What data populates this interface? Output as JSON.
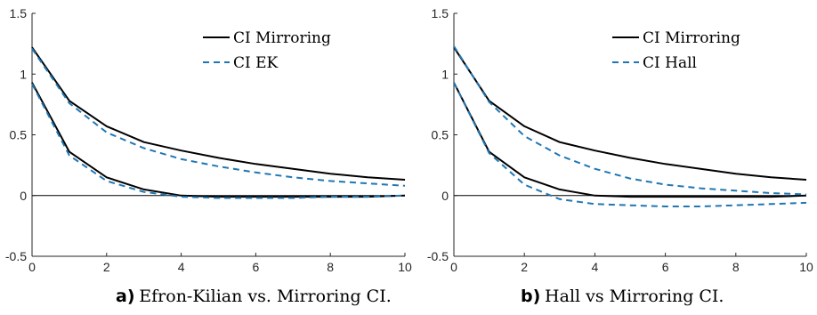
{
  "chart_data": [
    {
      "type": "line",
      "xlim": [
        0,
        10
      ],
      "ylim": [
        -0.5,
        1.5
      ],
      "xticks": [
        "0",
        "2",
        "4",
        "6",
        "8",
        "10"
      ],
      "yticks": [
        "-0.5",
        "0",
        "0.5",
        "1",
        "1.5"
      ],
      "zero_line": true,
      "legend_position": "top-right",
      "caption_tag": "a)",
      "caption_text": "Efron-Kilian vs. Mirroring CI.",
      "series": [
        {
          "name": "CI Mirroring",
          "style": "solid",
          "color": "#000000",
          "x": [
            0,
            1,
            2,
            3,
            4,
            5,
            6,
            7,
            8,
            9,
            10
          ],
          "upper": [
            1.22,
            0.78,
            0.57,
            0.44,
            0.37,
            0.31,
            0.26,
            0.22,
            0.18,
            0.15,
            0.13
          ],
          "lower": [
            0.93,
            0.36,
            0.15,
            0.05,
            0.0,
            -0.01,
            -0.01,
            -0.01,
            -0.01,
            -0.01,
            0.0
          ]
        },
        {
          "name": "CI EK",
          "style": "dashed",
          "color": "#1f77b4",
          "x": [
            0,
            1,
            2,
            3,
            4,
            5,
            6,
            7,
            8,
            9,
            10
          ],
          "upper": [
            1.21,
            0.76,
            0.52,
            0.39,
            0.3,
            0.24,
            0.19,
            0.15,
            0.12,
            0.1,
            0.08
          ],
          "lower": [
            0.92,
            0.33,
            0.12,
            0.03,
            -0.01,
            -0.02,
            -0.02,
            -0.02,
            -0.01,
            -0.01,
            0.0
          ]
        }
      ]
    },
    {
      "type": "line",
      "xlim": [
        0,
        10
      ],
      "ylim": [
        -0.5,
        1.5
      ],
      "xticks": [
        "0",
        "2",
        "4",
        "6",
        "8",
        "10"
      ],
      "yticks": [
        "-0.5",
        "0",
        "0.5",
        "1",
        "1.5"
      ],
      "zero_line": true,
      "legend_position": "top-right",
      "caption_tag": "b)",
      "caption_text": "Hall vs Mirroring CI.",
      "series": [
        {
          "name": "CI Mirroring",
          "style": "solid",
          "color": "#000000",
          "x": [
            0,
            1,
            2,
            3,
            4,
            5,
            6,
            7,
            8,
            9,
            10
          ],
          "upper": [
            1.22,
            0.78,
            0.57,
            0.44,
            0.37,
            0.31,
            0.26,
            0.22,
            0.18,
            0.15,
            0.13
          ],
          "lower": [
            0.93,
            0.36,
            0.15,
            0.05,
            0.0,
            -0.01,
            -0.01,
            -0.01,
            -0.01,
            -0.01,
            0.0
          ]
        },
        {
          "name": "CI Hall",
          "style": "dashed",
          "color": "#1f77b4",
          "x": [
            0,
            1,
            2,
            3,
            4,
            5,
            6,
            7,
            8,
            9,
            10
          ],
          "upper": [
            1.23,
            0.77,
            0.49,
            0.33,
            0.22,
            0.14,
            0.09,
            0.06,
            0.04,
            0.02,
            0.01
          ],
          "lower": [
            0.93,
            0.35,
            0.09,
            -0.03,
            -0.07,
            -0.08,
            -0.09,
            -0.09,
            -0.08,
            -0.07,
            -0.06
          ]
        }
      ]
    }
  ]
}
